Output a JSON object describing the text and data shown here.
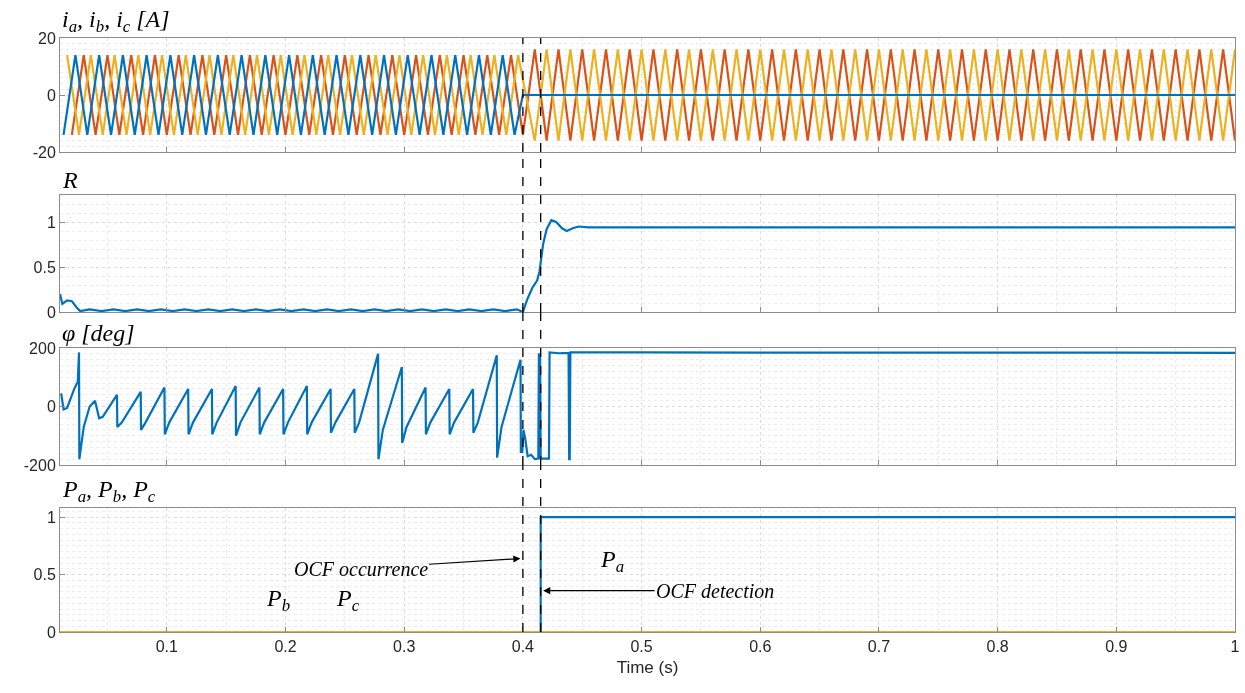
{
  "chart_data": [
    {
      "type": "line",
      "title": "i$_{a}$, i$_{b}$, i$_{c}$ [A]",
      "xlim": [
        0.01,
        1
      ],
      "ylim": [
        -20,
        20
      ],
      "yticks": [
        -20,
        0,
        20
      ],
      "xticks": [
        0.1,
        0.2,
        0.3,
        0.4,
        0.5,
        0.6,
        0.7,
        0.8,
        0.9,
        1
      ],
      "grid": true,
      "tick_labels": "y",
      "ref_lines": [
        {
          "axis": "x",
          "value": 0.4,
          "color": "#000000",
          "line_style": "dashed"
        },
        {
          "axis": "x",
          "value": 0.415,
          "color": "#000000",
          "line_style": "dashed"
        }
      ],
      "series": [
        {
          "color": "#d95319",
          "x": [
            0.02,
            0.03,
            0.04,
            0.05,
            0.06,
            0.07,
            0.08,
            0.09,
            0.1,
            0.11,
            0.12,
            0.13,
            0.14,
            0.15,
            0.16,
            0.17,
            0.18,
            0.19,
            0.2,
            0.21,
            0.22,
            0.23,
            0.24,
            0.25,
            0.26,
            0.27,
            0.28,
            0.29,
            0.3,
            0.31,
            0.32,
            0.33,
            0.34,
            0.35,
            0.36,
            0.37,
            0.38,
            0.39,
            0.4,
            0.41,
            0.42,
            0.43,
            0.44,
            0.45,
            0.46,
            0.47,
            0.48,
            0.49,
            0.5,
            0.51,
            0.52,
            0.53,
            0.54,
            0.55,
            0.56,
            0.57,
            0.58,
            0.59,
            0.6,
            0.61,
            0.62,
            0.63,
            0.64,
            0.65,
            0.66,
            0.67,
            0.68,
            0.69,
            0.7,
            0.71,
            0.72,
            0.73,
            0.74,
            0.75,
            0.76,
            0.77,
            0.78,
            0.79,
            0.8,
            0.81,
            0.82,
            0.83,
            0.84,
            0.85,
            0.86,
            0.87,
            0.88,
            0.89,
            0.9,
            0.91,
            0.92,
            0.93,
            0.94,
            0.95,
            0.96,
            0.97,
            0.98,
            0.99,
            1.0
          ],
          "values": [
            -14,
            14,
            -14,
            14,
            -14,
            14,
            -14,
            14,
            -14,
            14,
            -14,
            14,
            -14,
            14,
            -14,
            14,
            -14,
            14,
            -14,
            14,
            -14,
            14,
            -14,
            14,
            -14,
            14,
            -14,
            14,
            -14,
            14,
            -14,
            14,
            -14,
            14,
            -14,
            14,
            -14,
            14,
            -14,
            16,
            -16,
            16,
            -16,
            16,
            -16,
            16,
            -16,
            16,
            -16,
            16,
            -16,
            16,
            -16,
            16,
            -16,
            16,
            -16,
            16,
            -16,
            16,
            -16,
            16,
            -16,
            16,
            -16,
            16,
            -16,
            16,
            -16,
            16,
            -16,
            16,
            -16,
            16,
            -16,
            16,
            -16,
            16,
            -16,
            16,
            -16,
            16,
            -16,
            16,
            -16,
            16,
            -16,
            16,
            -16,
            16,
            -16,
            16,
            -16,
            16,
            -16,
            16,
            -16,
            16,
            -16
          ]
        },
        {
          "color": "#edb120",
          "x": [
            0.016,
            0.026,
            0.036,
            0.046,
            0.056,
            0.066,
            0.076,
            0.086,
            0.096,
            0.106,
            0.116,
            0.126,
            0.136,
            0.146,
            0.156,
            0.166,
            0.176,
            0.186,
            0.196,
            0.206,
            0.216,
            0.226,
            0.236,
            0.246,
            0.256,
            0.266,
            0.276,
            0.286,
            0.296,
            0.306,
            0.316,
            0.326,
            0.336,
            0.346,
            0.356,
            0.366,
            0.376,
            0.386,
            0.396,
            0.41,
            0.42,
            0.43,
            0.44,
            0.45,
            0.46,
            0.47,
            0.48,
            0.49,
            0.5,
            0.51,
            0.52,
            0.53,
            0.54,
            0.55,
            0.56,
            0.57,
            0.58,
            0.59,
            0.6,
            0.61,
            0.62,
            0.63,
            0.64,
            0.65,
            0.66,
            0.67,
            0.68,
            0.69,
            0.7,
            0.71,
            0.72,
            0.73,
            0.74,
            0.75,
            0.76,
            0.77,
            0.78,
            0.79,
            0.8,
            0.81,
            0.82,
            0.83,
            0.84,
            0.85,
            0.86,
            0.87,
            0.88,
            0.89,
            0.9,
            0.91,
            0.92,
            0.93,
            0.94,
            0.95,
            0.96,
            0.97,
            0.98,
            0.99,
            1.0
          ],
          "values": [
            14,
            -14,
            14,
            -14,
            14,
            -14,
            14,
            -14,
            14,
            -14,
            14,
            -14,
            14,
            -14,
            14,
            -14,
            14,
            -14,
            14,
            -14,
            14,
            -14,
            14,
            -14,
            14,
            -14,
            14,
            -14,
            14,
            -14,
            14,
            -14,
            14,
            -14,
            14,
            -14,
            14,
            -14,
            14,
            -16,
            16,
            -16,
            16,
            -16,
            16,
            -16,
            16,
            -16,
            16,
            -16,
            16,
            -16,
            16,
            -16,
            16,
            -16,
            16,
            -16,
            16,
            -16,
            16,
            -16,
            16,
            -16,
            16,
            -16,
            16,
            -16,
            16,
            -16,
            16,
            -16,
            16,
            -16,
            16,
            -16,
            16,
            -16,
            16,
            -16,
            16,
            -16,
            16,
            -16,
            16,
            -16,
            16,
            -16,
            16,
            -16,
            16,
            -16,
            16,
            -16,
            16,
            -16,
            16,
            -16,
            16
          ]
        },
        {
          "color": "#0072bd",
          "x": [
            0.013,
            0.023,
            0.033,
            0.043,
            0.053,
            0.063,
            0.073,
            0.083,
            0.093,
            0.103,
            0.113,
            0.123,
            0.133,
            0.143,
            0.153,
            0.163,
            0.173,
            0.183,
            0.193,
            0.203,
            0.213,
            0.223,
            0.233,
            0.243,
            0.253,
            0.263,
            0.273,
            0.283,
            0.293,
            0.303,
            0.313,
            0.323,
            0.333,
            0.343,
            0.353,
            0.363,
            0.373,
            0.383,
            0.393,
            0.4,
            1.0
          ],
          "values": [
            -14,
            14,
            -14,
            14,
            -14,
            14,
            -14,
            14,
            -14,
            14,
            -14,
            14,
            -14,
            14,
            -14,
            14,
            -14,
            14,
            -14,
            14,
            -14,
            14,
            -14,
            14,
            -14,
            14,
            -14,
            14,
            -14,
            14,
            -14,
            14,
            -14,
            14,
            -14,
            14,
            -14,
            14,
            -14,
            0,
            0
          ]
        }
      ]
    },
    {
      "type": "line",
      "title": "R",
      "xlim": [
        0.01,
        1
      ],
      "ylim": [
        0,
        1.3
      ],
      "yticks": [
        0,
        0.5,
        1
      ],
      "xticks": [
        0.1,
        0.2,
        0.3,
        0.4,
        0.5,
        0.6,
        0.7,
        0.8,
        0.9,
        1
      ],
      "grid": true,
      "tick_labels": "y",
      "ref_lines": [
        {
          "axis": "x",
          "value": 0.4,
          "color": "#000000",
          "line_style": "dashed"
        },
        {
          "axis": "x",
          "value": 0.415,
          "color": "#000000",
          "line_style": "dashed"
        }
      ],
      "series": [
        {
          "color": "#0072bd",
          "x": [
            0.01,
            0.012,
            0.016,
            0.02,
            0.024,
            0.027,
            0.035,
            0.045,
            0.055,
            0.065,
            0.075,
            0.085,
            0.095,
            0.105,
            0.115,
            0.125,
            0.135,
            0.145,
            0.155,
            0.165,
            0.175,
            0.185,
            0.195,
            0.205,
            0.215,
            0.225,
            0.235,
            0.245,
            0.255,
            0.265,
            0.275,
            0.285,
            0.295,
            0.305,
            0.315,
            0.325,
            0.335,
            0.345,
            0.355,
            0.365,
            0.375,
            0.385,
            0.395,
            0.4,
            0.404,
            0.408,
            0.412,
            0.414,
            0.417,
            0.42,
            0.424,
            0.428,
            0.433,
            0.437,
            0.442,
            0.447,
            0.455,
            0.47,
            0.5,
            0.6,
            0.7,
            0.8,
            0.9,
            1.0
          ],
          "values": [
            0.2,
            0.09,
            0.13,
            0.12,
            0.05,
            0.01,
            0.03,
            0.01,
            0.03,
            0.01,
            0.03,
            0.01,
            0.03,
            0.01,
            0.03,
            0.01,
            0.03,
            0.01,
            0.03,
            0.01,
            0.03,
            0.01,
            0.03,
            0.01,
            0.03,
            0.01,
            0.03,
            0.01,
            0.03,
            0.01,
            0.03,
            0.01,
            0.03,
            0.01,
            0.03,
            0.01,
            0.03,
            0.01,
            0.03,
            0.01,
            0.03,
            0.01,
            0.03,
            0.0,
            0.15,
            0.27,
            0.35,
            0.45,
            0.75,
            0.92,
            1.02,
            1.0,
            0.93,
            0.9,
            0.93,
            0.95,
            0.94,
            0.94,
            0.94,
            0.94,
            0.94,
            0.94,
            0.94,
            0.94
          ]
        }
      ]
    },
    {
      "type": "line",
      "title": "φ [deg]",
      "xlim": [
        0.01,
        1
      ],
      "ylim": [
        -200,
        200
      ],
      "yticks": [
        -200,
        0,
        200
      ],
      "xticks": [
        0.1,
        0.2,
        0.3,
        0.4,
        0.5,
        0.6,
        0.7,
        0.8,
        0.9,
        1
      ],
      "grid": true,
      "tick_labels": "y",
      "ref_lines": [
        {
          "axis": "x",
          "value": 0.4,
          "color": "#000000",
          "line_style": "dashed"
        },
        {
          "axis": "x",
          "value": 0.415,
          "color": "#000000",
          "line_style": "dashed"
        }
      ],
      "series": [
        {
          "color": "#0072bd",
          "x": [
            0.011,
            0.013,
            0.016,
            0.022,
            0.025,
            0.026,
            0.0263,
            0.03,
            0.035,
            0.0395,
            0.043,
            0.046,
            0.058,
            0.0583,
            0.062,
            0.078,
            0.0783,
            0.082,
            0.098,
            0.0983,
            0.102,
            0.118,
            0.1183,
            0.122,
            0.138,
            0.1383,
            0.142,
            0.158,
            0.1583,
            0.162,
            0.178,
            0.1783,
            0.182,
            0.198,
            0.1983,
            0.202,
            0.218,
            0.2183,
            0.222,
            0.238,
            0.2383,
            0.242,
            0.258,
            0.2583,
            0.262,
            0.278,
            0.2783,
            0.282,
            0.298,
            0.2983,
            0.302,
            0.318,
            0.3183,
            0.322,
            0.338,
            0.3383,
            0.342,
            0.358,
            0.3583,
            0.362,
            0.378,
            0.3783,
            0.382,
            0.398,
            0.3983,
            0.3995,
            0.4005,
            0.402,
            0.404,
            0.407,
            0.41,
            0.413,
            0.4135,
            0.414,
            0.4145,
            0.415,
            0.422,
            0.4225,
            0.43,
            0.4385,
            0.439,
            0.4395,
            0.44,
            0.5,
            0.6,
            0.7,
            0.8,
            0.9,
            1.0
          ],
          "values": [
            45,
            -10,
            -5,
            60,
            85,
            185,
            -180,
            -70,
            0,
            20,
            -40,
            -35,
            40,
            -70,
            -55,
            50,
            -80,
            -55,
            65,
            -95,
            -55,
            60,
            -95,
            -55,
            60,
            -95,
            -55,
            70,
            -100,
            -55,
            65,
            -95,
            -55,
            60,
            -95,
            -55,
            70,
            -95,
            -55,
            60,
            -90,
            -55,
            60,
            -90,
            -55,
            180,
            -180,
            -80,
            135,
            -125,
            -70,
            65,
            -95,
            -55,
            60,
            -95,
            -55,
            60,
            -90,
            -55,
            175,
            -175,
            -70,
            160,
            -155,
            -155,
            -80,
            -110,
            -170,
            -165,
            -180,
            -178,
            182,
            -178,
            182,
            -178,
            -178,
            185,
            182,
            183,
            -180,
            -180,
            185,
            185,
            184,
            184,
            184,
            184,
            183
          ]
        }
      ]
    },
    {
      "type": "line",
      "title": "P$_{a}$, P$_{b}$, P$_{c}$",
      "xlabel": "Time (s)",
      "xlim": [
        0.01,
        1
      ],
      "ylim": [
        0,
        1.08
      ],
      "yticks": [
        0,
        0.5,
        1
      ],
      "xticks": [
        0.1,
        0.2,
        0.3,
        0.4,
        0.5,
        0.6,
        0.7,
        0.8,
        0.9,
        1
      ],
      "grid": true,
      "ref_lines": [
        {
          "axis": "x",
          "value": 0.4,
          "color": "#000000",
          "line_style": "dashed"
        },
        {
          "axis": "x",
          "value": 0.415,
          "color": "#000000",
          "line_style": "dashed"
        }
      ],
      "annotations": [
        "P$_{a}$",
        "P$_{b}$",
        "P$_{c}$",
        {
          "text": "OCF occurrence",
          "x": 0.398,
          "y": 0.64
        },
        {
          "text": "OCF detection",
          "x": 0.417,
          "y": 0.36
        }
      ],
      "series": [
        {
          "color": "#edb120",
          "x": [
            0.01,
            1.0
          ],
          "values": [
            0,
            0
          ]
        },
        {
          "color": "#0072bd",
          "x": [
            0.415,
            0.415,
            1.0
          ],
          "values": [
            0,
            1,
            1
          ]
        }
      ]
    }
  ]
}
